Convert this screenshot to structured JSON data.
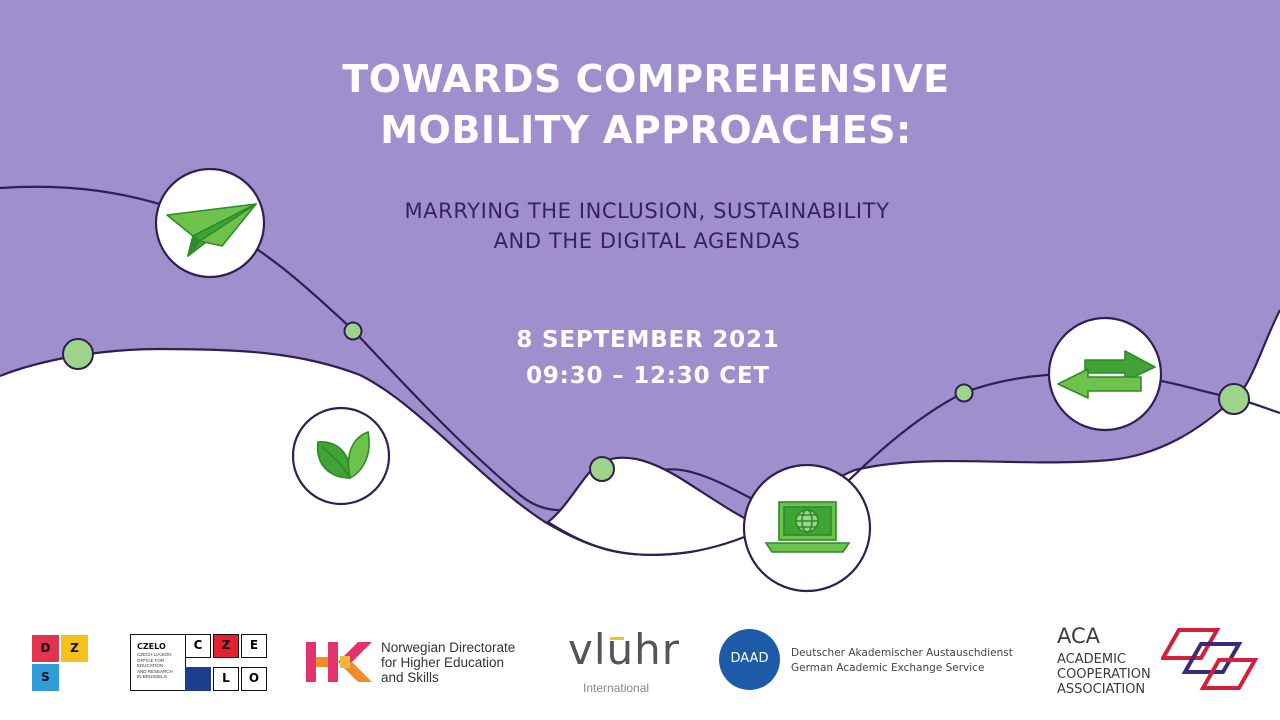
{
  "colors": {
    "purple": "#a08fcd",
    "dark_line": "#2f1f55",
    "green": "#3fa335",
    "light_green": "#9ed48a"
  },
  "title": {
    "line1": "TOWARDS COMPREHENSIVE",
    "line2": "MOBILITY APPROACHES:"
  },
  "subtitle": {
    "line1": "MARRYING THE INCLUSION, SUSTAINABILITY",
    "line2": "AND THE DIGITAL AGENDAS"
  },
  "event": {
    "date": "8 SEPTEMBER 2021",
    "time": "09:30 – 12:30 CET"
  },
  "icons": [
    "paper-plane-icon",
    "leaf-icon",
    "laptop-globe-icon",
    "exchange-arrows-icon"
  ],
  "logos": {
    "dzs": {
      "letters": [
        "D",
        "Z",
        "S"
      ]
    },
    "czelo": {
      "name": "CZELO",
      "desc_lines": [
        "CZECH LIAISON",
        "OFFICE FOR",
        "EDUCATION",
        "AND RESEARCH",
        "IN BRUSSELS"
      ],
      "letters": [
        "C",
        "Z",
        "E",
        "L",
        "O"
      ]
    },
    "hkdir": {
      "line1": "Norwegian Directorate",
      "line2": "for Higher Education",
      "line3": "and Skills"
    },
    "vluhr": {
      "name": "vluhr",
      "sub": "International"
    },
    "daad": {
      "badge": "DAAD",
      "line1": "Deutscher Akademischer Austauschdienst",
      "line2": "German Academic Exchange Service"
    },
    "aca": {
      "abbr": "ACA",
      "line1": "ACADEMIC",
      "line2": "COOPERATION",
      "line3": "ASSOCIATION"
    }
  }
}
